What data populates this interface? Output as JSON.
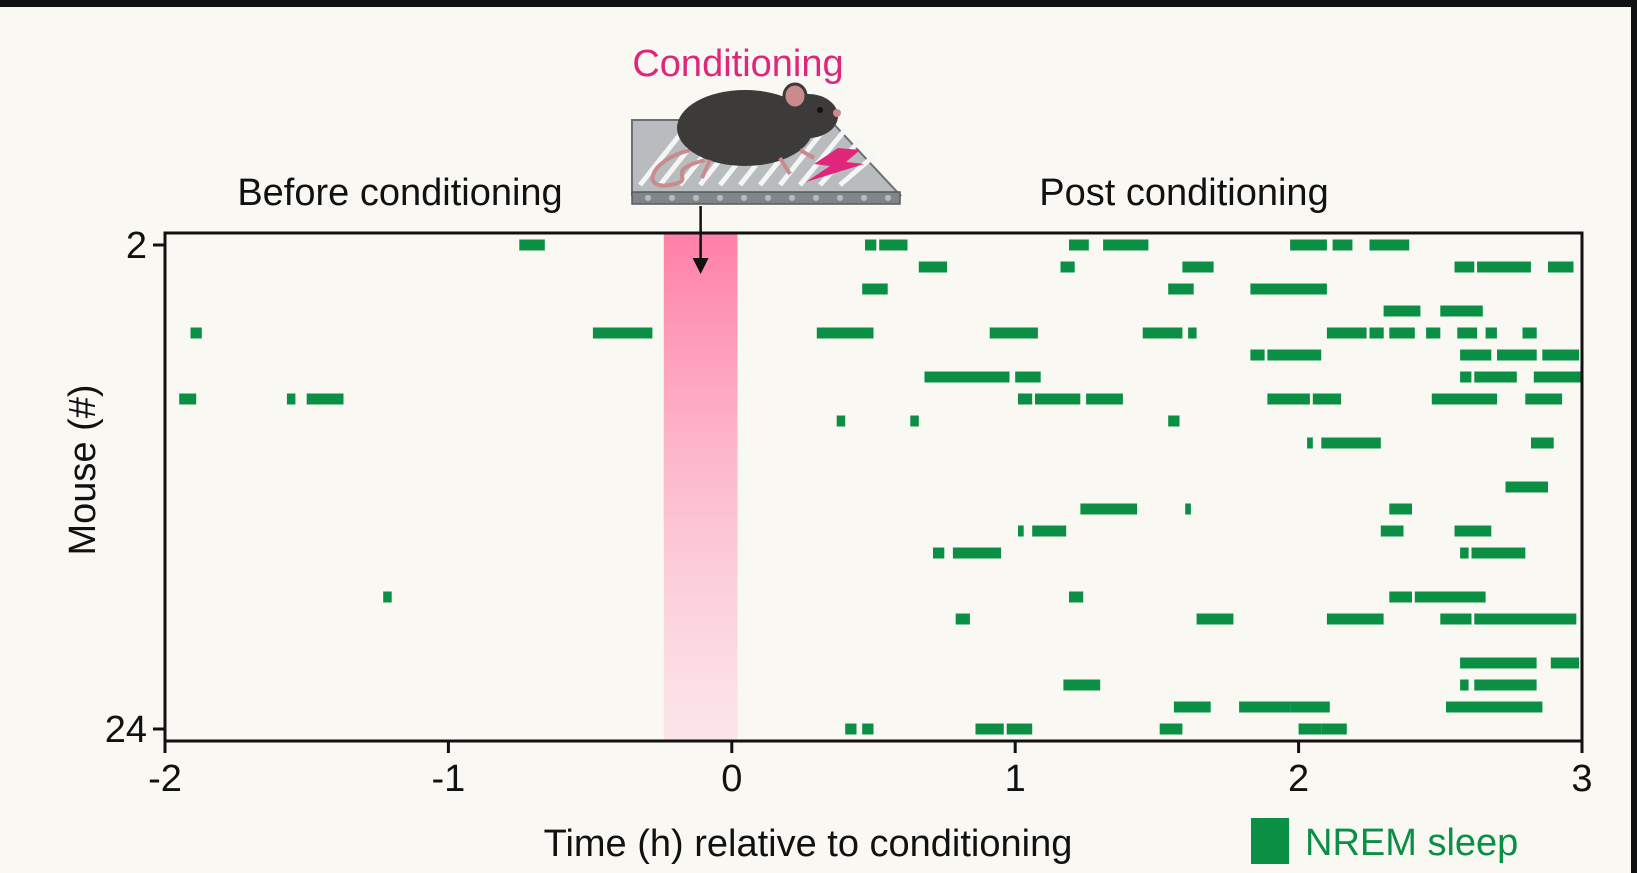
{
  "chart_data": {
    "type": "raster",
    "title": "",
    "xlabel": "Time (h) relative to conditioning",
    "ylabel": "Mouse (#)",
    "xlim": [
      -2,
      3
    ],
    "ylim": [
      2,
      24
    ],
    "x_ticks": [
      -2,
      -1,
      0,
      1,
      2,
      3
    ],
    "x_tick_labels": [
      "-2",
      "-1",
      "0",
      "1",
      "2",
      "3"
    ],
    "y_ticks": [
      2,
      24
    ],
    "y_tick_labels": [
      "2",
      "24"
    ],
    "grid": false,
    "legend": {
      "placement": "bottom-right",
      "label": "NREM sleep",
      "color": "#0a8f45"
    },
    "annotations": {
      "before": "Before conditioning",
      "post": "Post conditioning",
      "conditioning": "Conditioning"
    },
    "conditioning_window": {
      "start": -0.24,
      "end": 0.02,
      "color": "#ff7fa7"
    },
    "nrem_color": "#0a8f45",
    "series": [
      {
        "mouse": 2,
        "bouts": [
          [
            -0.75,
            -0.66
          ],
          [
            0.47,
            0.51
          ],
          [
            0.52,
            0.62
          ],
          [
            1.19,
            1.26
          ],
          [
            1.31,
            1.47
          ],
          [
            1.97,
            2.1
          ],
          [
            2.12,
            2.19
          ],
          [
            2.25,
            2.39
          ]
        ]
      },
      {
        "mouse": 3,
        "bouts": [
          [
            0.66,
            0.76
          ],
          [
            1.16,
            1.21
          ],
          [
            1.59,
            1.7
          ],
          [
            2.55,
            2.62
          ],
          [
            2.63,
            2.82
          ],
          [
            2.88,
            2.97
          ]
        ]
      },
      {
        "mouse": 4,
        "bouts": [
          [
            0.46,
            0.55
          ],
          [
            1.54,
            1.63
          ],
          [
            1.83,
            2.1
          ]
        ]
      },
      {
        "mouse": 5,
        "bouts": [
          [
            2.3,
            2.43
          ],
          [
            2.5,
            2.65
          ]
        ]
      },
      {
        "mouse": 6,
        "bouts": [
          [
            -1.91,
            -1.87
          ],
          [
            -0.49,
            -0.28
          ],
          [
            0.3,
            0.5
          ],
          [
            0.91,
            1.08
          ],
          [
            1.45,
            1.59
          ],
          [
            1.61,
            1.64
          ],
          [
            2.1,
            2.24
          ],
          [
            2.25,
            2.3
          ],
          [
            2.32,
            2.41
          ],
          [
            2.45,
            2.5
          ],
          [
            2.56,
            2.63
          ],
          [
            2.66,
            2.7
          ],
          [
            2.79,
            2.84
          ]
        ]
      },
      {
        "mouse": 7,
        "bouts": [
          [
            1.83,
            1.88
          ],
          [
            1.89,
            2.08
          ],
          [
            2.57,
            2.68
          ],
          [
            2.7,
            2.84
          ],
          [
            2.86,
            2.99
          ]
        ]
      },
      {
        "mouse": 8,
        "bouts": [
          [
            0.68,
            0.98
          ],
          [
            1.0,
            1.09
          ],
          [
            2.57,
            2.61
          ],
          [
            2.62,
            2.77
          ],
          [
            2.83,
            3.0
          ]
        ]
      },
      {
        "mouse": 9,
        "bouts": [
          [
            -1.95,
            -1.89
          ],
          [
            -1.57,
            -1.54
          ],
          [
            -1.5,
            -1.37
          ],
          [
            1.01,
            1.06
          ],
          [
            1.07,
            1.23
          ],
          [
            1.25,
            1.38
          ],
          [
            1.89,
            2.04
          ],
          [
            2.05,
            2.15
          ],
          [
            2.47,
            2.7
          ],
          [
            2.8,
            2.93
          ]
        ]
      },
      {
        "mouse": 10,
        "bouts": [
          [
            0.37,
            0.4
          ],
          [
            0.63,
            0.66
          ],
          [
            1.54,
            1.58
          ]
        ]
      },
      {
        "mouse": 11,
        "bouts": [
          [
            2.03,
            2.05
          ],
          [
            2.08,
            2.29
          ],
          [
            2.82,
            2.9
          ]
        ]
      },
      {
        "mouse": 12,
        "bouts": []
      },
      {
        "mouse": 13,
        "bouts": [
          [
            2.73,
            2.88
          ]
        ]
      },
      {
        "mouse": 14,
        "bouts": [
          [
            1.23,
            1.43
          ],
          [
            1.6,
            1.62
          ],
          [
            2.32,
            2.4
          ]
        ]
      },
      {
        "mouse": 15,
        "bouts": [
          [
            1.01,
            1.03
          ],
          [
            1.06,
            1.18
          ],
          [
            2.29,
            2.37
          ],
          [
            2.55,
            2.68
          ]
        ]
      },
      {
        "mouse": 16,
        "bouts": [
          [
            0.71,
            0.75
          ],
          [
            0.78,
            0.95
          ],
          [
            2.57,
            2.6
          ],
          [
            2.61,
            2.8
          ]
        ]
      },
      {
        "mouse": 17,
        "bouts": []
      },
      {
        "mouse": 18,
        "bouts": [
          [
            -1.23,
            -1.2
          ],
          [
            1.19,
            1.24
          ],
          [
            2.32,
            2.4
          ],
          [
            2.41,
            2.66
          ]
        ]
      },
      {
        "mouse": 19,
        "bouts": [
          [
            0.79,
            0.84
          ],
          [
            1.64,
            1.77
          ],
          [
            2.1,
            2.3
          ],
          [
            2.5,
            2.61
          ],
          [
            2.62,
            2.98
          ]
        ]
      },
      {
        "mouse": 20,
        "bouts": []
      },
      {
        "mouse": 21,
        "bouts": [
          [
            2.57,
            2.84
          ],
          [
            2.89,
            2.99
          ]
        ]
      },
      {
        "mouse": 22,
        "bouts": [
          [
            1.17,
            1.3
          ],
          [
            2.57,
            2.6
          ],
          [
            2.62,
            2.84
          ]
        ]
      },
      {
        "mouse": 23,
        "bouts": [
          [
            1.56,
            1.69
          ],
          [
            1.79,
            1.97
          ],
          [
            1.97,
            2.11
          ],
          [
            2.52,
            2.86
          ]
        ]
      },
      {
        "mouse": 24,
        "bouts": [
          [
            0.4,
            0.44
          ],
          [
            0.46,
            0.5
          ],
          [
            0.86,
            0.96
          ],
          [
            0.97,
            1.06
          ],
          [
            1.51,
            1.59
          ],
          [
            2.0,
            2.08
          ],
          [
            2.08,
            2.17
          ]
        ]
      }
    ]
  }
}
